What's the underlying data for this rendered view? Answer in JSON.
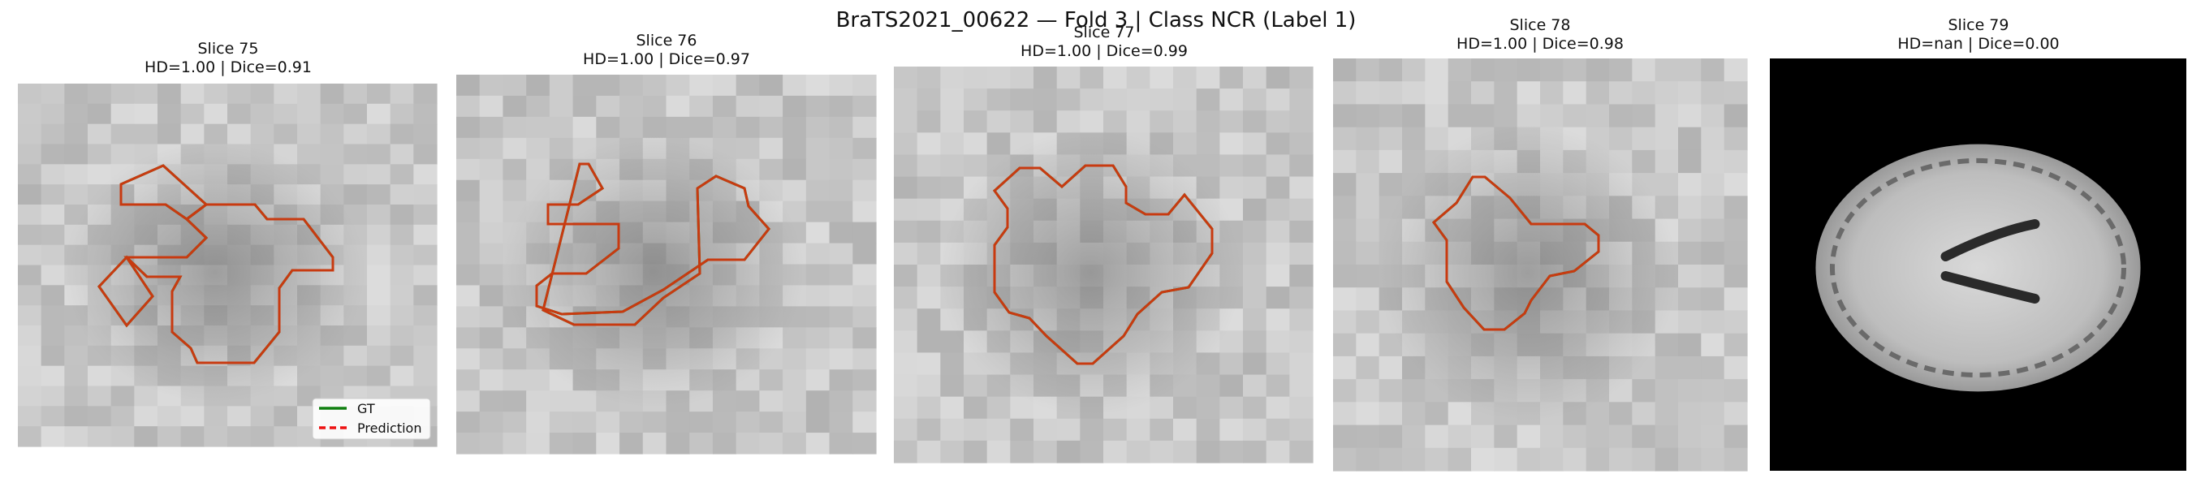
{
  "figure": {
    "title": "BraTS2021_00622 — Fold 3 | Class NCR (Label 1)"
  },
  "panels": [
    {
      "title_line1": "Slice 75",
      "title_line2": "HD=1.00 | Dice=0.91",
      "kind": "patch",
      "hue": "light"
    },
    {
      "title_line1": "Slice 76",
      "title_line2": "HD=1.00 | Dice=0.97",
      "kind": "patch",
      "hue": "light"
    },
    {
      "title_line1": "Slice 77",
      "title_line2": "HD=1.00 | Dice=0.99",
      "kind": "patch",
      "hue": "light"
    },
    {
      "title_line1": "Slice 78",
      "title_line2": "HD=1.00 | Dice=0.98",
      "kind": "patch",
      "hue": "light"
    },
    {
      "title_line1": "Slice 79",
      "title_line2": "HD=nan | Dice=0.00",
      "kind": "brain",
      "hue": "dark"
    }
  ],
  "legend": {
    "gt_label": "GT",
    "pred_label": "Prediction"
  },
  "colors": {
    "gt": "#118011",
    "prediction": "#ee1111",
    "overlap": "#c83a10",
    "background_dark": "#000000"
  }
}
